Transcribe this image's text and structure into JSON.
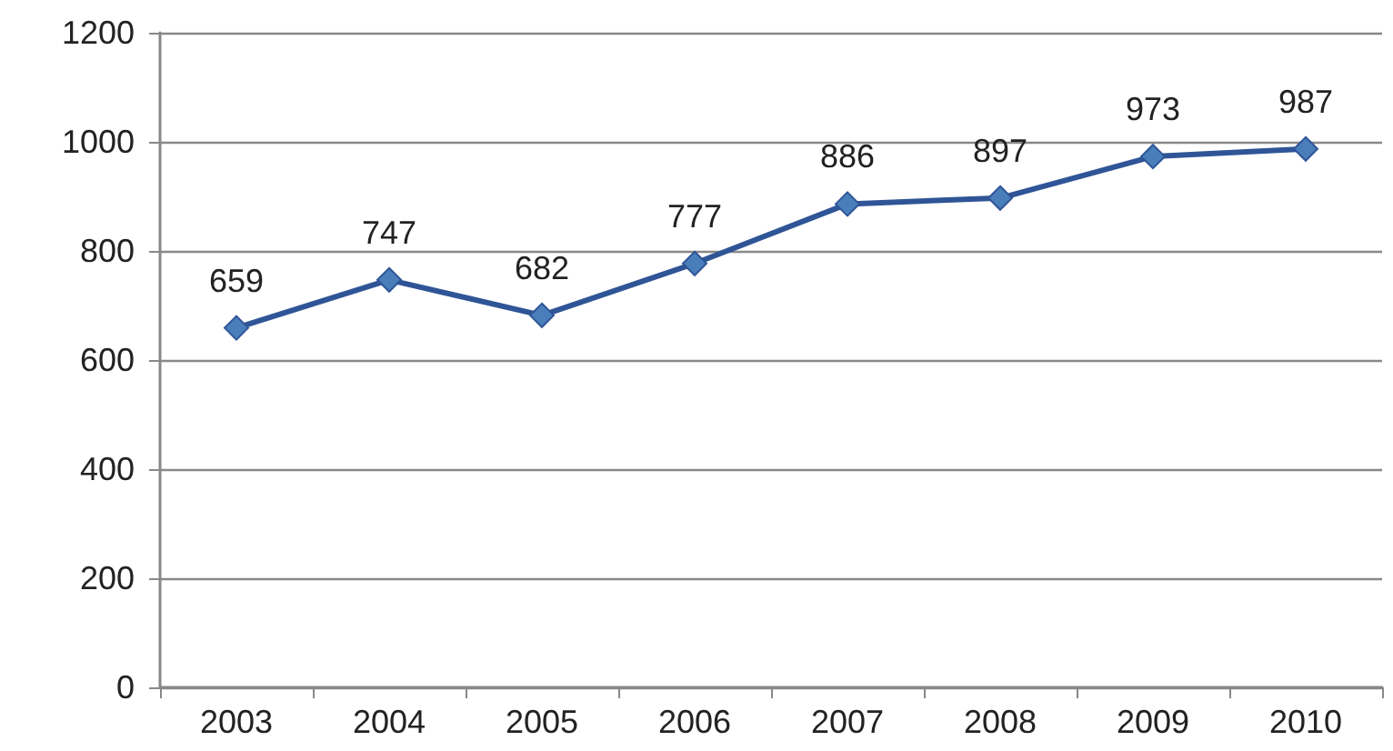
{
  "chart_data": {
    "type": "line",
    "categories": [
      "2003",
      "2004",
      "2005",
      "2006",
      "2007",
      "2008",
      "2009",
      "2010"
    ],
    "series": [
      {
        "color": "#2f5597",
        "values": [
          659,
          747,
          682,
          777,
          886,
          897,
          973,
          987
        ]
      }
    ],
    "ylim": [
      0,
      1200
    ],
    "yticks": [
      0,
      200,
      400,
      600,
      800,
      1000,
      1200
    ],
    "grid": "y",
    "marker": "diamond",
    "line_style": "solid",
    "data_labels": true
  }
}
